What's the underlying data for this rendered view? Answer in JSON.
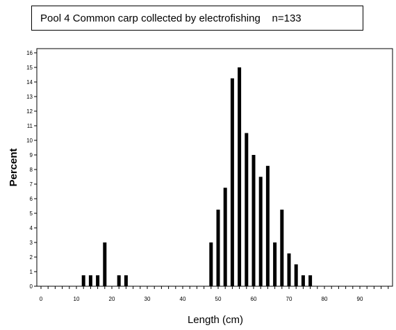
{
  "title": "Pool 4 Common carp collected by electrofishing    n=133",
  "chart_data": {
    "type": "bar",
    "xlabel": "Length (cm)",
    "ylabel": "Percent",
    "xlim": [
      0,
      98
    ],
    "ylim": [
      0,
      16
    ],
    "x_ticks": [
      0,
      10,
      20,
      30,
      40,
      50,
      60,
      70,
      80,
      90
    ],
    "y_ticks": [
      0,
      1,
      2,
      3,
      4,
      5,
      6,
      7,
      8,
      9,
      10,
      11,
      12,
      13,
      14,
      15,
      16
    ],
    "grid": false,
    "bars": [
      {
        "x": 12,
        "value": 0.75
      },
      {
        "x": 14,
        "value": 0.75
      },
      {
        "x": 16,
        "value": 0.75
      },
      {
        "x": 18,
        "value": 3.0
      },
      {
        "x": 22,
        "value": 0.75
      },
      {
        "x": 24,
        "value": 0.75
      },
      {
        "x": 48,
        "value": 3.0
      },
      {
        "x": 50,
        "value": 5.25
      },
      {
        "x": 52,
        "value": 6.75
      },
      {
        "x": 54,
        "value": 14.25
      },
      {
        "x": 56,
        "value": 15.0
      },
      {
        "x": 58,
        "value": 10.5
      },
      {
        "x": 60,
        "value": 9.0
      },
      {
        "x": 62,
        "value": 7.5
      },
      {
        "x": 64,
        "value": 8.25
      },
      {
        "x": 66,
        "value": 3.0
      },
      {
        "x": 68,
        "value": 5.25
      },
      {
        "x": 70,
        "value": 2.25
      },
      {
        "x": 72,
        "value": 1.5
      },
      {
        "x": 74,
        "value": 0.75
      },
      {
        "x": 76,
        "value": 0.75
      }
    ]
  }
}
